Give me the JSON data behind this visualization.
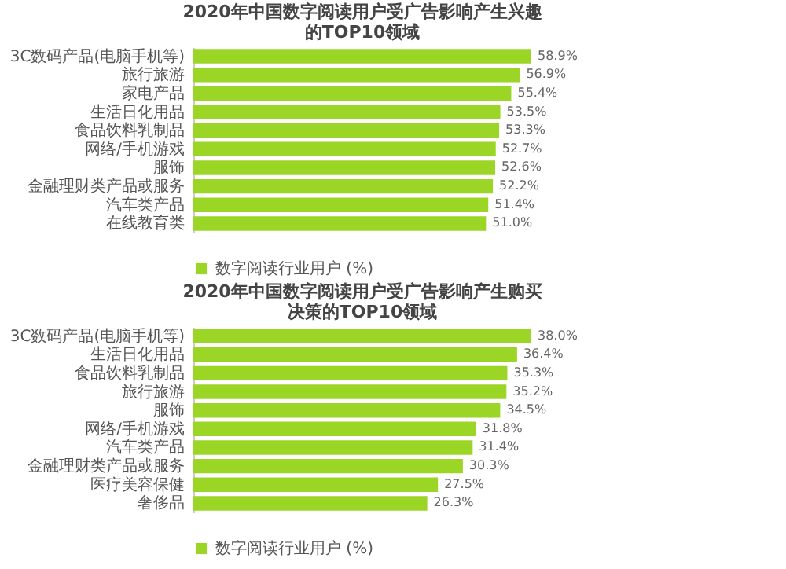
{
  "chart_data": [
    {
      "type": "bar",
      "orientation": "horizontal",
      "title": "2020年中国数字阅读用户受广告影响产生兴趣的TOP10领域",
      "categories": [
        "3C数码产品(电脑手机等)",
        "旅行旅游",
        "家电产品",
        "生活日化用品",
        "食品饮料乳制品",
        "网络/手机游戏",
        "服饰",
        "金融理财类产品或服务",
        "汽车类产品",
        "在线教育类"
      ],
      "series": [
        {
          "name": "数字阅读行业用户 (%)",
          "color": "#9bd626",
          "values": [
            58.9,
            56.9,
            55.4,
            53.5,
            53.3,
            52.7,
            52.6,
            52.2,
            51.4,
            51.0
          ],
          "value_labels": [
            "58.9%",
            "56.9%",
            "55.4%",
            "53.5%",
            "53.3%",
            "52.7%",
            "52.6%",
            "52.2%",
            "51.4%",
            "51.0%"
          ]
        }
      ],
      "legend": "bottom"
    },
    {
      "type": "bar",
      "orientation": "horizontal",
      "title": "2020年中国数字阅读用户受广告影响产生购买决策的TOP10领域",
      "categories": [
        "3C数码产品(电脑手机等)",
        "生活日化用品",
        "食品饮料乳制品",
        "旅行旅游",
        "服饰",
        "网络/手机游戏",
        "汽车类产品",
        "金融理财类产品或服务",
        "医疗美容保健",
        "奢侈品"
      ],
      "series": [
        {
          "name": "数字阅读行业用户 (%)",
          "color": "#9bd626",
          "values": [
            38.0,
            36.4,
            35.3,
            35.2,
            34.5,
            31.8,
            31.4,
            30.3,
            27.5,
            26.3
          ],
          "value_labels": [
            "38.0%",
            "36.4%",
            "35.3%",
            "35.2%",
            "34.5%",
            "31.8%",
            "31.4%",
            "30.3%",
            "27.5%",
            "26.3%"
          ]
        }
      ],
      "legend": "bottom"
    }
  ]
}
